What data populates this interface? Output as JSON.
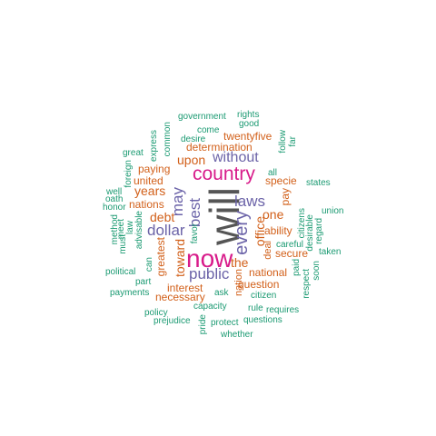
{
  "palette": {
    "gray": "#555555",
    "magenta": "#d81b8a",
    "purple": "#6b63a8",
    "orange": "#d2601a",
    "green": "#1b9a72"
  },
  "words": [
    {
      "t": "will",
      "c": "gray"
    },
    {
      "t": "now",
      "c": "magenta"
    },
    {
      "t": "country",
      "c": "magenta"
    },
    {
      "t": "every",
      "c": "purple"
    },
    {
      "t": "best",
      "c": "purple"
    },
    {
      "t": "may",
      "c": "purple"
    },
    {
      "t": "dollar",
      "c": "purple"
    },
    {
      "t": "laws",
      "c": "purple"
    },
    {
      "t": "public",
      "c": "purple"
    },
    {
      "t": "without",
      "c": "purple"
    },
    {
      "t": "upon",
      "c": "orange"
    },
    {
      "t": "years",
      "c": "orange"
    },
    {
      "t": "debt",
      "c": "orange"
    },
    {
      "t": "toward",
      "c": "orange"
    },
    {
      "t": "office",
      "c": "orange"
    },
    {
      "t": "one",
      "c": "orange"
    },
    {
      "t": "the",
      "c": "orange"
    },
    {
      "t": "twentyfive",
      "c": "orange"
    },
    {
      "t": "determination",
      "c": "orange"
    },
    {
      "t": "paying",
      "c": "orange"
    },
    {
      "t": "united",
      "c": "orange"
    },
    {
      "t": "nations",
      "c": "orange"
    },
    {
      "t": "specie",
      "c": "orange"
    },
    {
      "t": "pay",
      "c": "orange"
    },
    {
      "t": "ability",
      "c": "orange"
    },
    {
      "t": "secure",
      "c": "orange"
    },
    {
      "t": "national",
      "c": "orange"
    },
    {
      "t": "question",
      "c": "orange"
    },
    {
      "t": "interest",
      "c": "orange"
    },
    {
      "t": "necessary",
      "c": "orange"
    },
    {
      "t": "greatest",
      "c": "orange"
    },
    {
      "t": "nation",
      "c": "orange"
    },
    {
      "t": "deal",
      "c": "orange"
    },
    {
      "t": "government",
      "c": "green"
    },
    {
      "t": "rights",
      "c": "green"
    },
    {
      "t": "good",
      "c": "green"
    },
    {
      "t": "come",
      "c": "green"
    },
    {
      "t": "desire",
      "c": "green"
    },
    {
      "t": "common",
      "c": "green"
    },
    {
      "t": "express",
      "c": "green"
    },
    {
      "t": "great",
      "c": "green"
    },
    {
      "t": "foreign",
      "c": "green"
    },
    {
      "t": "far",
      "c": "green"
    },
    {
      "t": "follow",
      "c": "green"
    },
    {
      "t": "all",
      "c": "green"
    },
    {
      "t": "states",
      "c": "green"
    },
    {
      "t": "well",
      "c": "green"
    },
    {
      "t": "oath",
      "c": "green"
    },
    {
      "t": "honor",
      "c": "green"
    },
    {
      "t": "method",
      "c": "green"
    },
    {
      "t": "must",
      "c": "green"
    },
    {
      "t": "meet",
      "c": "green"
    },
    {
      "t": "law",
      "c": "green"
    },
    {
      "t": "advisable",
      "c": "green"
    },
    {
      "t": "favor",
      "c": "green"
    },
    {
      "t": "citizens",
      "c": "green"
    },
    {
      "t": "desirable",
      "c": "green"
    },
    {
      "t": "union",
      "c": "green"
    },
    {
      "t": "regard",
      "c": "green"
    },
    {
      "t": "careful",
      "c": "green"
    },
    {
      "t": "taken",
      "c": "green"
    },
    {
      "t": "political",
      "c": "green"
    },
    {
      "t": "can",
      "c": "green"
    },
    {
      "t": "part",
      "c": "green"
    },
    {
      "t": "payments",
      "c": "green"
    },
    {
      "t": "ask",
      "c": "green"
    },
    {
      "t": "paid",
      "c": "green"
    },
    {
      "t": "soon",
      "c": "green"
    },
    {
      "t": "respect",
      "c": "green"
    },
    {
      "t": "citizen",
      "c": "green"
    },
    {
      "t": "capacity",
      "c": "green"
    },
    {
      "t": "rule",
      "c": "green"
    },
    {
      "t": "requires",
      "c": "green"
    },
    {
      "t": "policy",
      "c": "green"
    },
    {
      "t": "prejudice",
      "c": "green"
    },
    {
      "t": "pride",
      "c": "green"
    },
    {
      "t": "protect",
      "c": "green"
    },
    {
      "t": "questions",
      "c": "green"
    },
    {
      "t": "whether",
      "c": "green"
    }
  ]
}
